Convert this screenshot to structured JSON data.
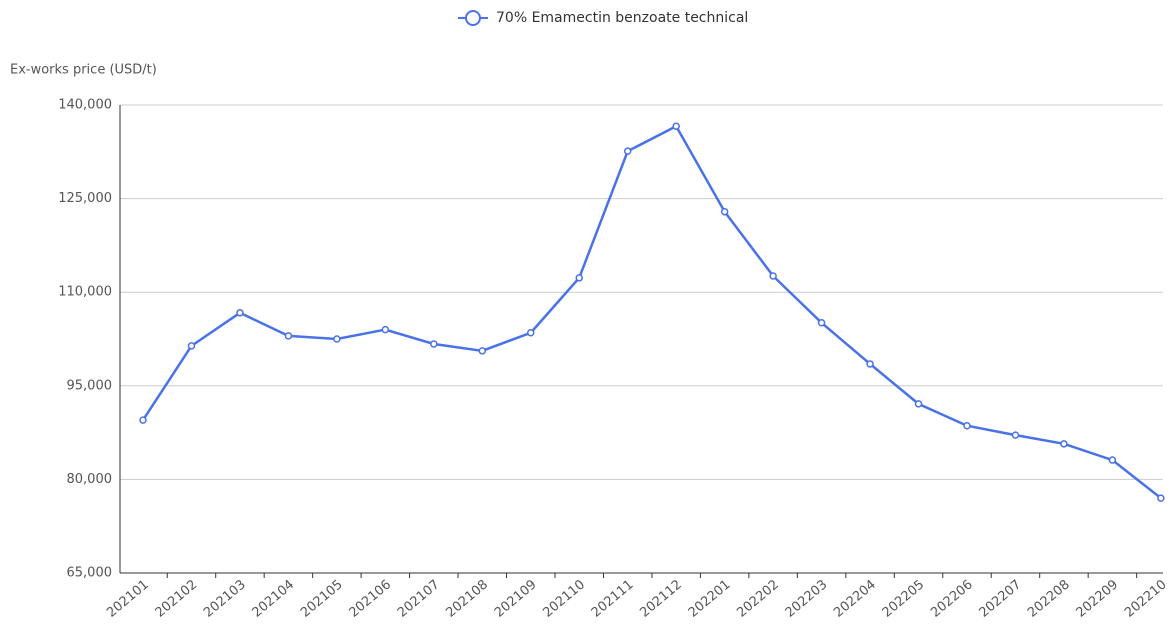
{
  "chart_data": {
    "type": "line",
    "y_label": "Ex-works price (USD/t)",
    "categories": [
      "202101",
      "202102",
      "202103",
      "202104",
      "202105",
      "202106",
      "202107",
      "202108",
      "202109",
      "202110",
      "202111",
      "202112",
      "202201",
      "202202",
      "202203",
      "202204",
      "202205",
      "202206",
      "202207",
      "202208",
      "202209",
      "202210"
    ],
    "series": [
      {
        "name": "70% Emamectin benzoate technical",
        "color": "#4a72e8",
        "values": [
          89500,
          101400,
          106700,
          103000,
          102500,
          104000,
          101700,
          100600,
          103500,
          112300,
          132600,
          136600,
          122900,
          112600,
          105100,
          98500,
          92100,
          88600,
          87100,
          85700,
          83100,
          77000
        ]
      }
    ],
    "ylim": [
      65000,
      140000
    ],
    "yticks": [
      {
        "value": 65000,
        "label": "65,000"
      },
      {
        "value": 80000,
        "label": "80,000"
      },
      {
        "value": 95000,
        "label": "95,000"
      },
      {
        "value": 110000,
        "label": "110,000"
      },
      {
        "value": 125000,
        "label": "125,000"
      },
      {
        "value": 140000,
        "label": "140,000"
      }
    ],
    "grid": true,
    "legend": "top"
  }
}
